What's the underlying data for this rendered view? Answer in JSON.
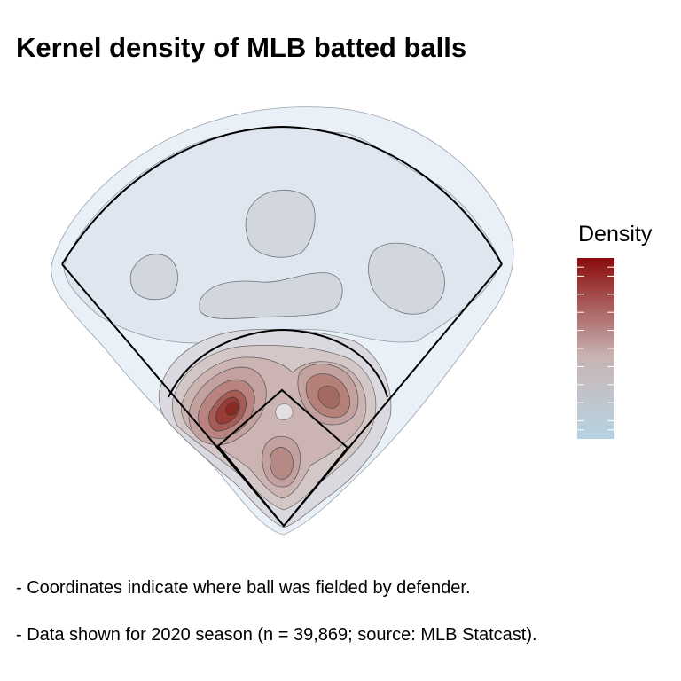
{
  "chart_data": {
    "type": "heatmap",
    "title": "Kernel density of MLB batted balls",
    "legend": {
      "title": "Density",
      "placement": "right",
      "colors": {
        "low": "#b7d3e3",
        "mid": "#c9b5b5",
        "high": "#8b0b0b"
      }
    },
    "colors": {
      "field_line": "#000000",
      "contour_line": "#555555",
      "outer_halo": "#e9f0f8"
    },
    "density_levels": [
      0.05,
      0.1,
      0.2,
      0.3,
      0.4,
      0.5,
      0.6,
      0.7,
      0.8,
      0.9,
      0.95,
      1.0
    ],
    "density_hotspots": [
      {
        "label": "left-infield (shortstop/third base area)",
        "relative_density": 1.0
      },
      {
        "label": "right-infield (second base area)",
        "relative_density": 0.75
      },
      {
        "label": "pitcher/catcher area",
        "relative_density": 0.55
      },
      {
        "label": "center field",
        "relative_density": 0.2
      },
      {
        "label": "left field",
        "relative_density": 0.2
      },
      {
        "label": "right field",
        "relative_density": 0.2
      }
    ]
  },
  "notes": [
    "- Coordinates indicate where ball was fielded by defender.",
    "- Data shown for 2020 season (n = 39,869; source: MLB Statcast)."
  ]
}
